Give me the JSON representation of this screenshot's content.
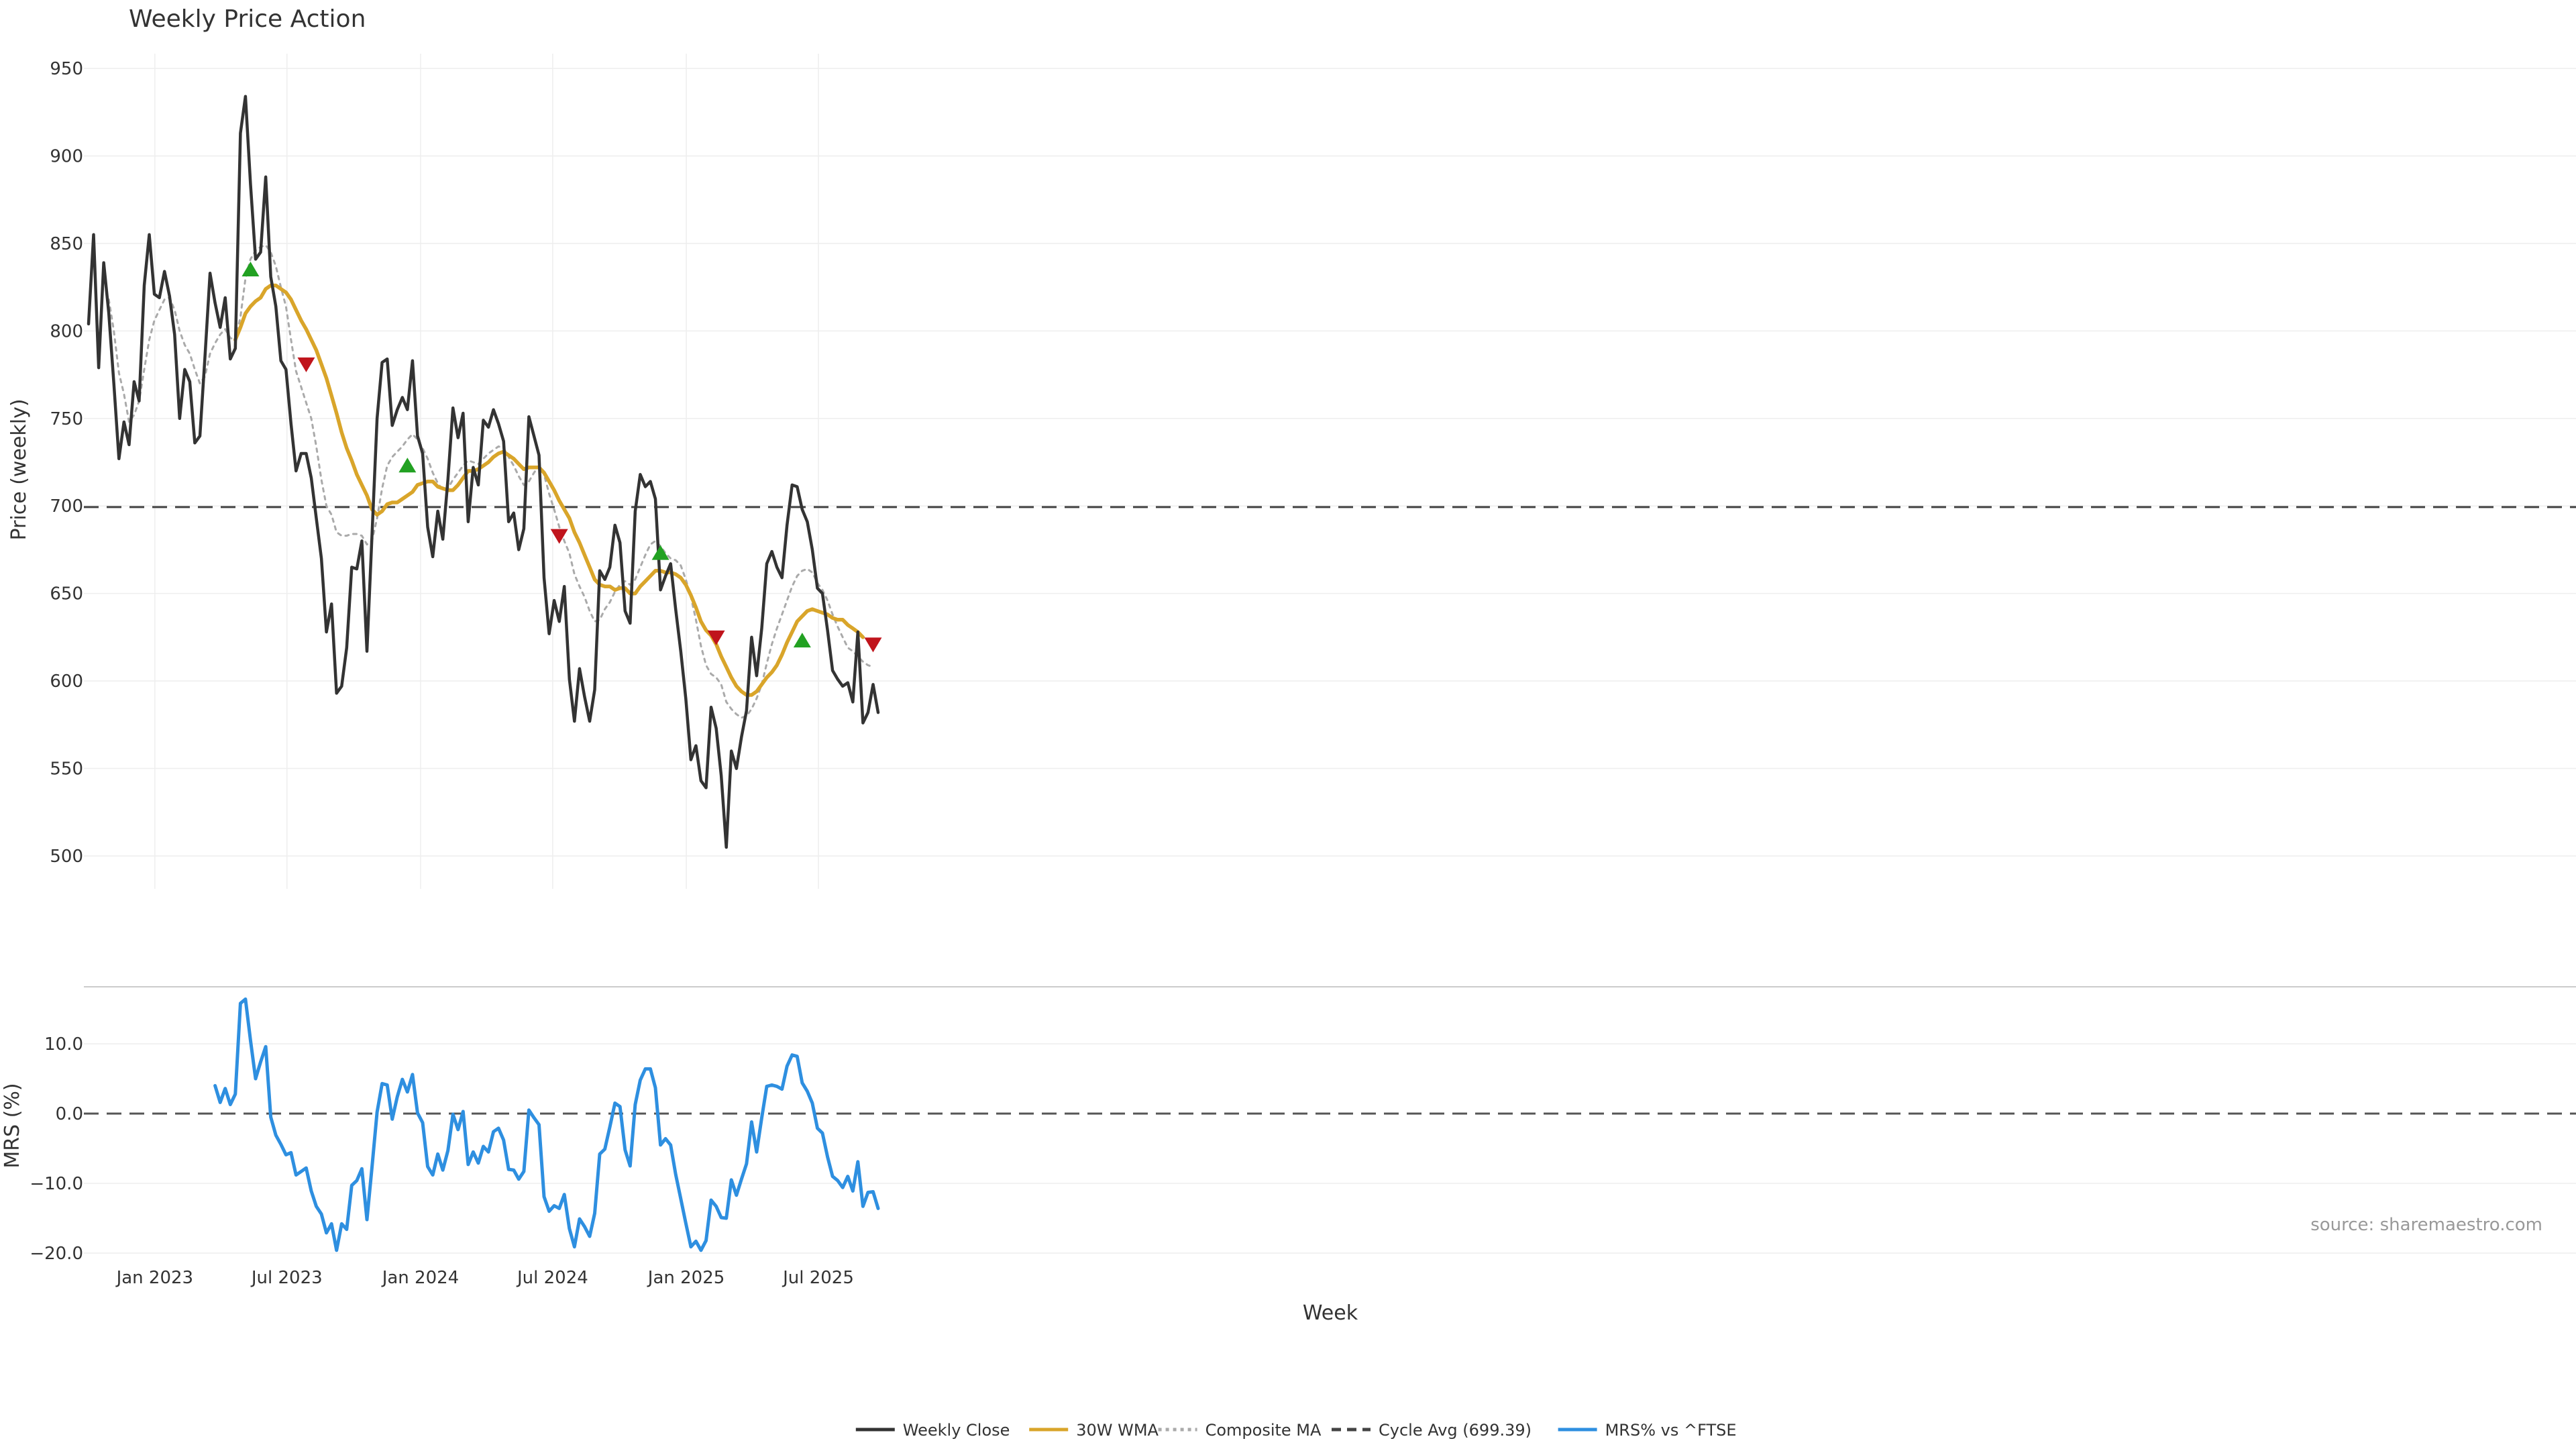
{
  "chart_data": {
    "type": "line",
    "title": "Weekly Price Action",
    "xlabel": "Week",
    "x_tick_labels": [
      "Jan 2023",
      "Jul 2023",
      "Jan 2024",
      "Jul 2024",
      "Jan 2025",
      "Jul 2025"
    ],
    "source_text": "source: sharemaestro.com",
    "price_panel": {
      "ylabel": "Price (weekly)",
      "ylim": [
        480,
        960
      ],
      "y_ticks": [
        500,
        550,
        600,
        650,
        700,
        750,
        800,
        850,
        900,
        950
      ],
      "y_tick_labels": [
        "500",
        "550",
        "600",
        "650",
        "700",
        "750",
        "800",
        "850",
        "900",
        "950"
      ],
      "cycle_avg": 699.39,
      "series": [
        {
          "name": "Weekly Close",
          "color": "#333333",
          "style": "solid",
          "values": [
            804,
            855,
            779,
            839,
            810,
            770,
            727,
            748,
            735,
            771,
            760,
            826,
            855,
            821,
            819,
            834,
            820,
            798,
            750,
            778,
            771,
            736,
            740,
            785,
            833,
            816,
            802,
            819,
            784,
            790,
            913,
            934,
            884,
            841,
            845,
            888,
            831,
            814,
            783,
            778,
            747,
            720,
            730,
            730,
            716,
            693,
            670,
            628,
            644,
            593,
            597,
            619,
            665,
            664,
            680,
            617,
            683,
            750,
            782,
            784,
            746,
            755,
            762,
            755,
            783,
            740,
            730,
            688,
            671,
            697,
            681,
            715,
            756,
            739,
            753,
            691,
            722,
            712,
            749,
            745,
            755,
            747,
            737,
            691,
            696,
            675,
            687,
            751,
            740,
            729,
            659,
            627,
            646,
            634,
            654,
            601,
            577,
            607,
            591,
            577,
            595,
            663,
            658,
            665,
            689,
            679,
            640,
            633,
            697,
            718,
            711,
            714,
            704,
            652,
            660,
            667,
            641,
            617,
            590,
            555,
            563,
            543,
            539,
            585,
            573,
            546,
            505,
            560,
            550,
            568,
            583,
            625,
            603,
            630,
            667,
            674,
            665,
            659,
            689,
            712,
            711,
            698,
            691,
            675,
            653,
            650,
            629,
            606,
            601,
            597,
            599,
            588,
            628,
            576,
            582,
            598,
            582
          ]
        },
        {
          "name": "30W WMA",
          "color": "#d9a52a",
          "style": "solid",
          "values": [
            null,
            null,
            null,
            null,
            null,
            null,
            null,
            null,
            null,
            null,
            null,
            null,
            null,
            null,
            null,
            null,
            null,
            null,
            null,
            null,
            null,
            null,
            null,
            null,
            null,
            null,
            null,
            null,
            null,
            795,
            802,
            810,
            814,
            817,
            819,
            824,
            826,
            826,
            824,
            822,
            818,
            812,
            806,
            801,
            795,
            789,
            781,
            773,
            763,
            753,
            742,
            733,
            726,
            718,
            712,
            706,
            698,
            695,
            697,
            701,
            702,
            702,
            704,
            706,
            708,
            712,
            713,
            714,
            714,
            711,
            710,
            709,
            709,
            712,
            716,
            720,
            720,
            721,
            723,
            725,
            728,
            730,
            731,
            729,
            727,
            724,
            721,
            722,
            722,
            722,
            719,
            714,
            709,
            703,
            698,
            693,
            685,
            679,
            672,
            665,
            658,
            655,
            654,
            654,
            652,
            653,
            653,
            650,
            650,
            654,
            657,
            660,
            663,
            663,
            662,
            662,
            661,
            659,
            655,
            649,
            642,
            634,
            629,
            626,
            621,
            614,
            608,
            602,
            597,
            594,
            592,
            592,
            594,
            598,
            602,
            605,
            609,
            615,
            622,
            628,
            634,
            637,
            640,
            641,
            640,
            639,
            638,
            636,
            635,
            635,
            632,
            630,
            628,
            625
          ]
        },
        {
          "name": "Composite MA",
          "color": "#aaaaaa",
          "style": "dotted",
          "values": [
            null,
            null,
            null,
            null,
            818,
            800,
            776,
            764,
            748,
            752,
            760,
            778,
            795,
            806,
            812,
            818,
            819,
            812,
            800,
            792,
            787,
            778,
            770,
            774,
            787,
            793,
            798,
            801,
            796,
            795,
            808,
            830,
            841,
            846,
            848,
            849,
            845,
            837,
            825,
            814,
            795,
            777,
            768,
            759,
            750,
            734,
            715,
            700,
            695,
            685,
            683,
            683,
            684,
            684,
            683,
            678,
            680,
            693,
            710,
            723,
            728,
            731,
            734,
            738,
            741,
            738,
            733,
            727,
            719,
            713,
            709,
            710,
            715,
            719,
            723,
            726,
            725,
            724,
            727,
            730,
            732,
            734,
            733,
            728,
            723,
            717,
            712,
            714,
            719,
            723,
            718,
            707,
            698,
            688,
            680,
            673,
            661,
            654,
            648,
            640,
            634,
            635,
            641,
            645,
            651,
            655,
            657,
            655,
            658,
            665,
            672,
            678,
            680,
            677,
            673,
            670,
            669,
            666,
            658,
            648,
            635,
            620,
            609,
            604,
            602,
            598,
            588,
            584,
            581,
            579,
            580,
            584,
            590,
            598,
            610,
            621,
            630,
            638,
            646,
            654,
            660,
            663,
            664,
            662,
            656,
            652,
            646,
            638,
            631,
            625,
            619,
            617,
            614,
            611,
            609,
            608
          ]
        },
        {
          "name": "Cycle Avg (699.39)",
          "color": "#444444",
          "style": "dashed"
        }
      ],
      "buy_signals": [
        [
          32,
          835
        ],
        [
          63,
          723
        ],
        [
          113,
          673
        ],
        [
          141,
          623
        ]
      ],
      "sell_signals": [
        [
          43,
          781
        ],
        [
          93,
          683
        ],
        [
          124,
          625
        ],
        [
          155,
          621
        ]
      ]
    },
    "mrs_panel": {
      "ylabel": "MRS (%)",
      "ylim": [
        -21,
        19
      ],
      "y_ticks": [
        -20,
        -10,
        0,
        10
      ],
      "y_tick_labels": [
        "−20.0",
        "−10.0",
        "0.0",
        "10.0"
      ],
      "series": [
        {
          "name": "MRS% vs ^FTSE",
          "color": "#2e8fe0",
          "start_week": 25,
          "values": [
            4,
            1.6,
            3.6,
            1.3,
            2.8,
            15.8,
            16.4,
            10.5,
            5,
            7.4,
            9.6,
            -0.5,
            -3.1,
            -4.4,
            -5.9,
            -5.6,
            -8.8,
            -8.3,
            -7.8,
            -11.1,
            -13.3,
            -14.4,
            -17.1,
            -15.8,
            -19.6,
            -15.8,
            -16.6,
            -10.3,
            -9.6,
            -7.9,
            -15.2,
            -7.7,
            0.2,
            4.3,
            4.1,
            -0.8,
            2.4,
            4.9,
            3.1,
            5.6,
            0.1,
            -1.3,
            -7.6,
            -8.8,
            -5.8,
            -8.1,
            -5.3,
            -0.1,
            -2.3,
            0.3,
            -7.3,
            -5.5,
            -7.1,
            -4.7,
            -5.5,
            -2.6,
            -2.1,
            -3.8,
            -8,
            -8.1,
            -9.4,
            -8.3,
            0.5,
            -0.6,
            -1.6,
            -11.9,
            -14,
            -13.2,
            -13.6,
            -11.6,
            -16.5,
            -19.1,
            -15.1,
            -16.2,
            -17.6,
            -14.3,
            -5.8,
            -5.1,
            -1.9,
            1.5,
            1,
            -5.2,
            -7.5,
            1.3,
            4.8,
            6.4,
            6.4,
            3.7,
            -4.5,
            -3.6,
            -4.5,
            -8.7,
            -12.2,
            -15.7,
            -19.1,
            -18.3,
            -19.6,
            -18.2,
            -12.4,
            -13.3,
            -14.9,
            -15,
            -9.5,
            -11.7,
            -9.4,
            -7.2,
            -1.2,
            -5.5,
            -0.6,
            3.9,
            4.1,
            3.9,
            3.5,
            6.8,
            8.4,
            8.2,
            4.4,
            3.2,
            1.5,
            -2.1,
            -2.8,
            -6.2,
            -9,
            -9.6,
            -10.6,
            -9,
            -11.1,
            -6.9,
            -13.3,
            -11.3,
            -11.2,
            -13.6
          ]
        }
      ]
    },
    "legend": [
      {
        "label": "Weekly Close",
        "color": "#333333",
        "style": "solid"
      },
      {
        "label": "30W WMA",
        "color": "#d9a52a",
        "style": "solid"
      },
      {
        "label": "Composite MA",
        "color": "#aaaaaa",
        "style": "dotted"
      },
      {
        "label": "Cycle Avg (699.39)",
        "color": "#444444",
        "style": "dashed"
      },
      {
        "label": "MRS% vs ^FTSE",
        "color": "#2e8fe0",
        "style": "solid"
      }
    ],
    "colors": {
      "buy": "#22a122",
      "sell": "#c0141c",
      "grid": "#eeeeee"
    }
  }
}
